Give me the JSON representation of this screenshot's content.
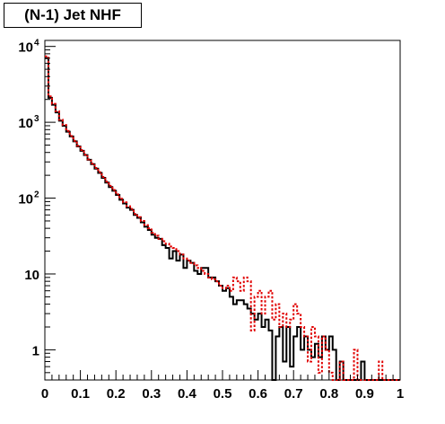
{
  "chart_data": {
    "type": "line",
    "title": "(N-1) Jet NHF",
    "xlabel": "",
    "ylabel": "",
    "xlim": [
      0,
      1
    ],
    "ylim": [
      0.4,
      12000
    ],
    "yscale": "log",
    "grid": false,
    "legend": "none",
    "x_tick_labels": [
      "0",
      "0.1",
      "0.2",
      "0.3",
      "0.4",
      "0.5",
      "0.6",
      "0.7",
      "0.8",
      "0.9",
      "1"
    ],
    "x_tick_values": [
      0,
      0.1,
      0.2,
      0.3,
      0.4,
      0.5,
      0.6,
      0.7,
      0.8,
      0.9,
      1
    ],
    "y_tick_labels": [
      {
        "value": 10000,
        "base": "10",
        "exp": "4"
      },
      {
        "value": 1000,
        "base": "10",
        "exp": "3"
      },
      {
        "value": 100,
        "base": "10",
        "exp": "2"
      },
      {
        "value": 10,
        "base": "10",
        "exp": ""
      },
      {
        "value": 1,
        "base": "1",
        "exp": ""
      }
    ],
    "bin_width": 0.01,
    "series": [
      {
        "color": "#000000",
        "style": "solid",
        "values": [
          7000,
          2100,
          1700,
          1350,
          1050,
          900,
          750,
          650,
          560,
          480,
          420,
          370,
          320,
          280,
          245,
          215,
          185,
          160,
          140,
          125,
          110,
          95,
          85,
          75,
          70,
          60,
          55,
          48,
          42,
          38,
          33,
          30,
          29,
          24,
          22,
          16,
          20,
          15,
          18,
          12,
          15,
          14,
          11,
          10,
          12,
          12,
          9,
          9,
          8,
          7,
          6,
          6.5,
          5,
          4,
          4.5,
          4.5,
          4,
          3.5,
          3,
          2.5,
          3,
          2,
          2.5,
          1.8,
          0.3,
          1.5,
          2,
          0.7,
          2,
          0.6,
          1.5,
          2,
          1,
          1.5,
          1,
          0.8,
          1.2,
          0.8,
          1.5,
          1,
          1.5,
          1,
          0.3,
          0.7,
          0.3,
          0.3,
          0.3,
          0.3,
          0.3,
          0.7,
          0.3,
          0.3,
          0.3,
          0.3,
          0.3,
          0.3,
          0.3,
          0.3,
          0.3,
          0.3
        ]
      },
      {
        "color": "#e00000",
        "style": "dotted",
        "values": [
          7400,
          2200,
          1750,
          1400,
          1080,
          920,
          770,
          660,
          570,
          490,
          430,
          375,
          325,
          285,
          250,
          220,
          190,
          165,
          145,
          128,
          112,
          98,
          88,
          78,
          72,
          62,
          56,
          50,
          44,
          40,
          35,
          32,
          29,
          27,
          25,
          23,
          22,
          20,
          18,
          16,
          15,
          14,
          13,
          12,
          11,
          10,
          9,
          8.5,
          8,
          7,
          6.5,
          7,
          6,
          9,
          8,
          6,
          9,
          8,
          1.8,
          5,
          6,
          3,
          5,
          6,
          2.5,
          4,
          2,
          3,
          2,
          2.5,
          4,
          3,
          2,
          1.5,
          0.7,
          2,
          1.5,
          0.5,
          1.5,
          1,
          0.5,
          0.3,
          0.3,
          0.7,
          0.3,
          0.3,
          0.3,
          1.0,
          0.3,
          0.3,
          0.3,
          0.3,
          0.3,
          0.3,
          0.7,
          0.3,
          0.3,
          0.3,
          0.3,
          0.3
        ]
      }
    ]
  }
}
